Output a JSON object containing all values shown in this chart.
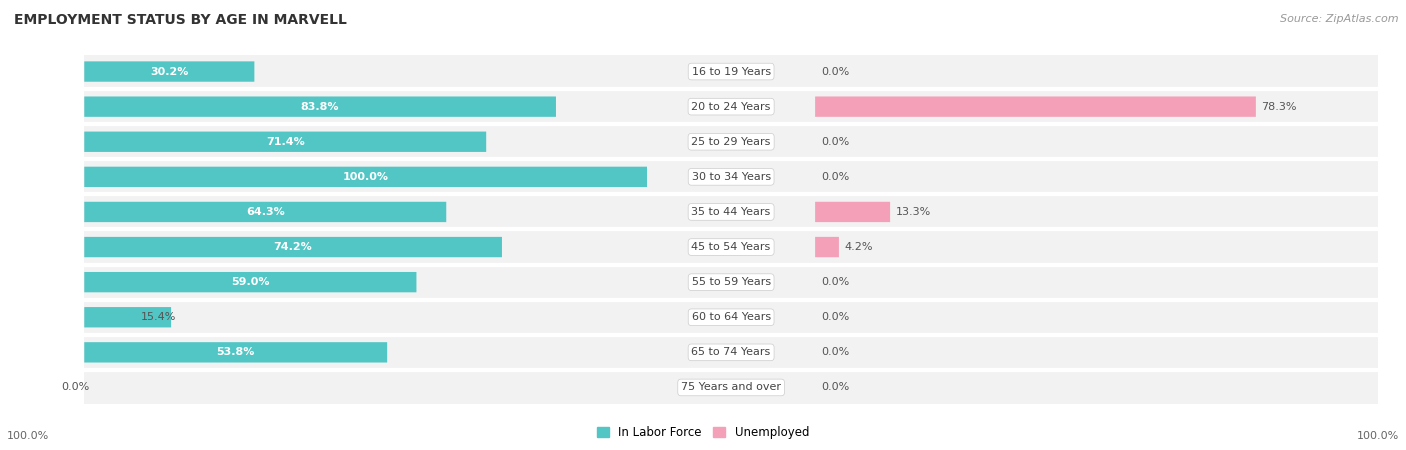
{
  "title": "EMPLOYMENT STATUS BY AGE IN MARVELL",
  "source": "Source: ZipAtlas.com",
  "categories": [
    "16 to 19 Years",
    "20 to 24 Years",
    "25 to 29 Years",
    "30 to 34 Years",
    "35 to 44 Years",
    "45 to 54 Years",
    "55 to 59 Years",
    "60 to 64 Years",
    "65 to 74 Years",
    "75 Years and over"
  ],
  "in_labor_force": [
    30.2,
    83.8,
    71.4,
    100.0,
    64.3,
    74.2,
    59.0,
    15.4,
    53.8,
    0.0
  ],
  "unemployed": [
    0.0,
    78.3,
    0.0,
    0.0,
    13.3,
    4.2,
    0.0,
    0.0,
    0.0,
    0.0
  ],
  "labor_color": "#52C5C5",
  "unemployed_color": "#F4A0B8",
  "row_bg_color": "#F2F2F2",
  "row_border_color": "#D8D8D8",
  "axis_label_left": "100.0%",
  "axis_label_right": "100.0%",
  "legend_labor": "In Labor Force",
  "legend_unemployed": "Unemployed",
  "title_fontsize": 10,
  "source_fontsize": 8,
  "label_fontsize": 8,
  "cat_fontsize": 8
}
